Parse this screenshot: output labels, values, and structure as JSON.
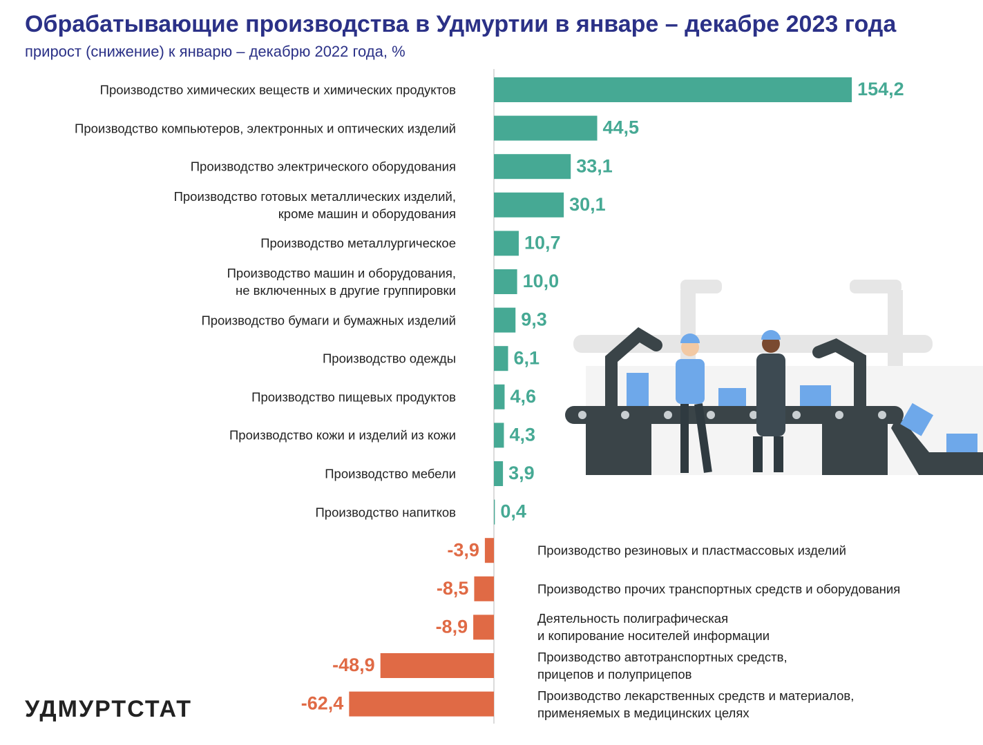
{
  "chart_data": {
    "type": "bar",
    "orientation": "horizontal",
    "title": "Обрабатывающие производства в Удмуртии в январе – декабре 2023 года",
    "subtitle": "прирост (снижение) к январю – декабрю 2022 года, %",
    "categories": [
      "Производство химических веществ и химических продуктов",
      "Производство компьютеров, электронных и оптических изделий",
      "Производство электрического оборудования",
      "Производство готовых металлических изделий,\nкроме машин и оборудования",
      "Производство металлургическое",
      "Производство машин и оборудования,\nне включенных в другие группировки",
      "Производство бумаги и бумажных изделий",
      "Производство одежды",
      "Производство пищевых продуктов",
      "Производство кожи и изделий из кожи",
      "Производство мебели",
      "Производство напитков",
      "Производство резиновых и пластмассовых изделий",
      "Производство прочих транспортных средств и оборудования",
      "Деятельность полиграфическая\nи копирование носителей информации",
      "Производство автотранспортных средств,\nприцепов и полуприцепов",
      "Производство лекарственных средств и материалов,\nприменяемых в медицинских целях"
    ],
    "values": [
      154.2,
      44.5,
      33.1,
      30.1,
      10.7,
      10.0,
      9.3,
      6.1,
      4.6,
      4.3,
      3.9,
      0.4,
      -3.9,
      -8.5,
      -8.9,
      -48.9,
      -62.4
    ],
    "value_labels": [
      "154,2",
      "44,5",
      "33,1",
      "30,1",
      "10,7",
      "10,0",
      "9,3",
      "6,1",
      "4,6",
      "4,3",
      "3,9",
      "0,4",
      "-3,9",
      "-8,5",
      "-8,9",
      "-48,9",
      "-62,4"
    ],
    "positive_color": "#46a994",
    "negative_color": "#e06a45",
    "logo": "УДМУРТСТАТ"
  }
}
